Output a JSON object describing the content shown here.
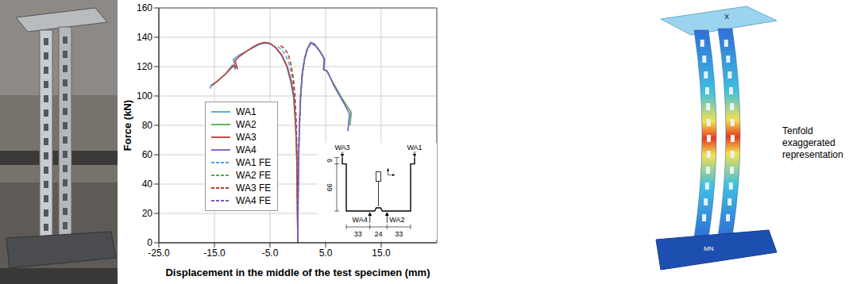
{
  "chart_data": {
    "type": "line",
    "x_label": "Displacement in the middle of the test specimen (mm)",
    "y_label": "Force (kN)",
    "xlim": [
      -25,
      25
    ],
    "xticks": [
      {
        "value": -25,
        "label": "-25.0"
      },
      {
        "value": -15,
        "label": "-15.0"
      },
      {
        "value": -5,
        "label": "-5.0"
      },
      {
        "value": 5,
        "label": "5.0"
      },
      {
        "value": 15,
        "label": "15.0"
      }
    ],
    "ylim": [
      0,
      160
    ],
    "yticks": [
      0,
      20,
      40,
      60,
      80,
      100,
      120,
      140,
      160
    ],
    "grid": true,
    "legend": "left",
    "series": [
      {
        "name": "WA1",
        "color": "#4ea6dc",
        "line_style": "solid",
        "x": [
          0,
          -0.1,
          -0.2,
          -0.4,
          -0.8,
          -1.3,
          -2,
          -3,
          -4,
          -5,
          -6,
          -7,
          -8,
          -9,
          -10.5,
          -11.6,
          -11.2,
          -11.8,
          -13,
          -14.5,
          -15.7,
          -15.7
        ],
        "values": [
          0,
          30,
          60,
          80,
          100,
          110,
          120,
          128,
          133,
          135.5,
          136,
          135,
          133,
          131,
          128,
          125,
          118,
          121,
          115,
          110,
          107,
          105
        ]
      },
      {
        "name": "WA2",
        "color": "#4caf50",
        "line_style": "solid",
        "x": [
          0,
          0.05,
          0.15,
          0.3,
          0.5,
          0.8,
          1.2,
          1.7,
          2.3,
          3,
          3.8,
          4.5,
          4.7,
          4.6,
          5.2,
          6.5,
          8,
          9.6,
          9.4
        ],
        "values": [
          0,
          30,
          60,
          80,
          100,
          115,
          125,
          132,
          136,
          135,
          131,
          127,
          125,
          118,
          117,
          108,
          98,
          89,
          80
        ]
      },
      {
        "name": "WA3",
        "color": "#c0392b",
        "line_style": "solid",
        "x": [
          0,
          -0.1,
          -0.2,
          -0.4,
          -0.7,
          -1.2,
          -1.9,
          -2.9,
          -4,
          -5,
          -6,
          -7,
          -8,
          -9,
          -10.5,
          -11.3,
          -10.9,
          -11.5,
          -13,
          -14.5,
          -15.5
        ],
        "values": [
          0,
          30,
          60,
          80,
          100,
          110,
          120,
          128,
          133,
          136,
          136.5,
          135.5,
          133.5,
          131,
          127,
          124,
          119,
          121,
          115,
          110,
          107
        ]
      },
      {
        "name": "WA4",
        "color": "#7e57c2",
        "line_style": "solid",
        "x": [
          0,
          0.05,
          0.15,
          0.3,
          0.5,
          0.8,
          1.2,
          1.7,
          2.3,
          3,
          3.8,
          4.5,
          4.8,
          4.7,
          5.3,
          6.5,
          8,
          9.3,
          9
        ],
        "values": [
          0,
          30,
          60,
          80,
          100,
          115,
          125,
          132,
          136.5,
          135.5,
          131.5,
          127.5,
          125,
          118,
          117,
          107,
          97,
          88,
          76
        ]
      },
      {
        "name": "WA1 FE",
        "color": "#4ea6dc",
        "line_style": "dashed",
        "x": [
          0,
          -0.1,
          -0.3,
          -0.6,
          -1,
          -1.5,
          -2.2,
          -3,
          -4
        ],
        "values": [
          0,
          40,
          80,
          100,
          112,
          121,
          128,
          132,
          134.5
        ]
      },
      {
        "name": "WA2 FE",
        "color": "#4caf50",
        "line_style": "dashed",
        "x": [
          0,
          0.05,
          0.15,
          0.3,
          0.5,
          0.8,
          1.2,
          1.7,
          2.3,
          3
        ],
        "values": [
          0,
          30,
          60,
          80,
          100,
          115,
          125,
          132,
          135.5,
          134.5
        ]
      },
      {
        "name": "WA3 FE",
        "color": "#c0392b",
        "line_style": "dashed",
        "x": [
          0,
          -0.1,
          -0.25,
          -0.5,
          -0.8,
          -1.2,
          -1.7,
          -2.3,
          -3.2
        ],
        "values": [
          0,
          40,
          80,
          100,
          112,
          121,
          128,
          132,
          134.5
        ]
      },
      {
        "name": "WA4 FE",
        "color": "#7e57c2",
        "line_style": "dashed",
        "x": [
          0,
          0.05,
          0.15,
          0.3,
          0.5,
          0.8,
          1.2,
          1.7,
          2.3,
          3
        ],
        "values": [
          0,
          30,
          60,
          80,
          100,
          115,
          125,
          132,
          136,
          135
        ]
      }
    ],
    "cross_section": {
      "labels": [
        "WA3",
        "WA1",
        "WA4",
        "WA2"
      ],
      "lip": 9,
      "height": 66,
      "widths": [
        33,
        24,
        33
      ]
    }
  },
  "fe_model": {
    "annotation": "Tenfold exaggerated representation",
    "labels": [
      "X",
      "MN"
    ]
  }
}
